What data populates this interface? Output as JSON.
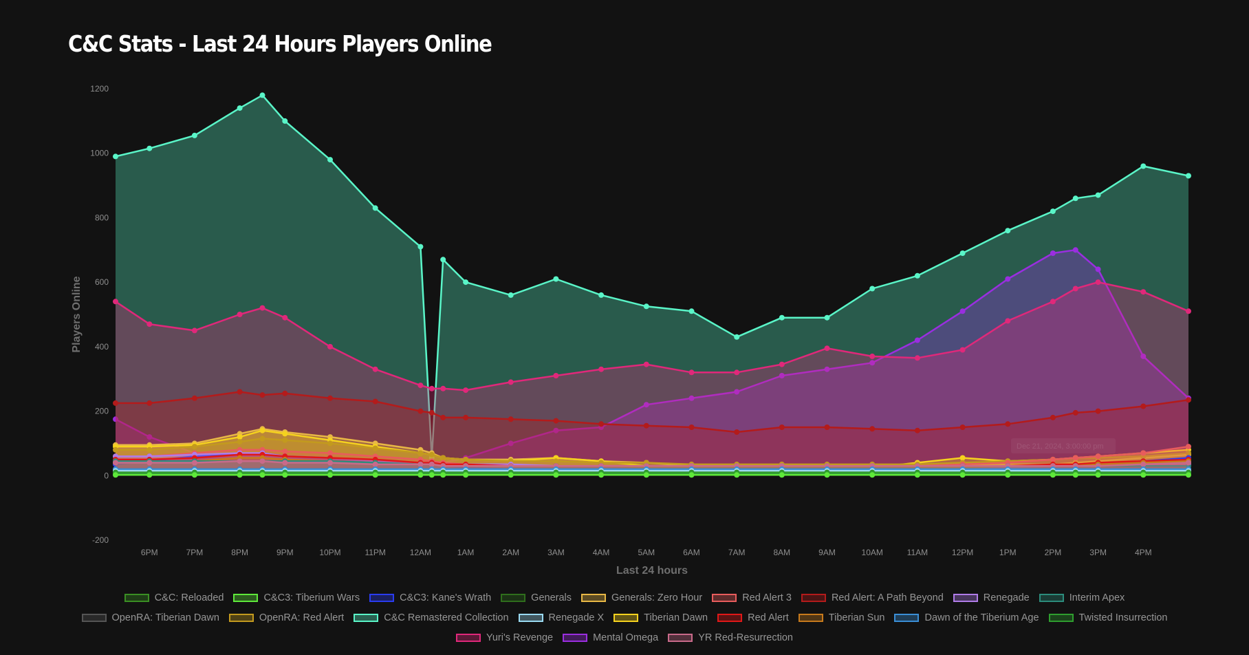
{
  "page": {
    "title": "C&C Stats - Last 24 Hours Players Online"
  },
  "colors": {
    "background": "#121212",
    "tick_text": "#8e8e8e",
    "axis_title_text": "#6f6f6f",
    "legend_text": "#969696"
  },
  "chart_data": {
    "type": "area",
    "title": "C&C Stats - Last 24 Hours Players Online",
    "xlabel": "Last 24 hours",
    "ylabel": "Players Online",
    "ylim": [
      -200,
      1200
    ],
    "y_ticks": [
      -200,
      0,
      200,
      400,
      600,
      800,
      1000,
      1200
    ],
    "x_range": [
      "17:15",
      "17:00"
    ],
    "x_tick_labels": [
      "6PM",
      "7PM",
      "8PM",
      "9PM",
      "10PM",
      "11PM",
      "12AM",
      "1AM",
      "2AM",
      "3AM",
      "4AM",
      "5AM",
      "6AM",
      "7AM",
      "8AM",
      "9AM",
      "10AM",
      "11AM",
      "12PM",
      "1PM",
      "2PM",
      "3PM",
      "4PM"
    ],
    "tooltip_text": "Dec 21, 2024, 3:00:00 pm",
    "grid": false,
    "legend_position": "bottom",
    "x": [
      "17:15",
      "18:00",
      "19:00",
      "20:00",
      "20:30",
      "21:00",
      "22:00",
      "23:00",
      "00:00",
      "00:15",
      "00:30",
      "01:00",
      "02:00",
      "03:00",
      "04:00",
      "05:00",
      "06:00",
      "07:00",
      "08:00",
      "09:00",
      "10:00",
      "11:00",
      "12:00",
      "13:00",
      "14:00",
      "14:30",
      "15:00",
      "16:00",
      "17:00"
    ],
    "series": [
      {
        "name": "C&C: Reloaded",
        "color": "#3a8f23",
        "values": [
          10,
          10,
          10,
          10,
          10,
          10,
          10,
          10,
          10,
          10,
          10,
          10,
          10,
          10,
          10,
          10,
          10,
          10,
          10,
          10,
          10,
          10,
          10,
          10,
          10,
          10,
          10,
          10,
          10
        ]
      },
      {
        "name": "C&C3: Tiberium Wars",
        "color": "#5ee83a",
        "values": [
          2,
          2,
          2,
          2,
          2,
          2,
          2,
          2,
          2,
          2,
          2,
          2,
          2,
          2,
          2,
          2,
          2,
          2,
          2,
          2,
          2,
          2,
          2,
          2,
          2,
          2,
          2,
          2,
          2
        ]
      },
      {
        "name": "C&C3: Kane's Wrath",
        "color": "#2a3cf0",
        "values": [
          35,
          45,
          60,
          65,
          70,
          60,
          55,
          45,
          35,
          35,
          30,
          25,
          20,
          20,
          20,
          15,
          15,
          15,
          15,
          15,
          15,
          15,
          20,
          25,
          30,
          30,
          35,
          45,
          55
        ]
      },
      {
        "name": "Generals",
        "color": "#2f6e1c",
        "values": [
          15,
          15,
          20,
          20,
          20,
          20,
          20,
          15,
          15,
          15,
          15,
          15,
          15,
          15,
          15,
          15,
          15,
          15,
          15,
          15,
          15,
          15,
          15,
          15,
          15,
          15,
          15,
          15,
          20
        ]
      },
      {
        "name": "Generals: Zero Hour",
        "color": "#e8b845",
        "values": [
          95,
          95,
          100,
          130,
          145,
          135,
          120,
          100,
          80,
          70,
          55,
          50,
          50,
          55,
          45,
          40,
          30,
          30,
          30,
          30,
          25,
          25,
          30,
          35,
          35,
          40,
          45,
          55,
          65
        ]
      },
      {
        "name": "Red Alert 3",
        "color": "#e85c5c",
        "values": [
          60,
          60,
          70,
          80,
          80,
          75,
          70,
          60,
          50,
          45,
          40,
          35,
          30,
          30,
          30,
          25,
          25,
          25,
          25,
          25,
          25,
          30,
          35,
          40,
          50,
          55,
          60,
          70,
          90
        ]
      },
      {
        "name": "Red Alert: A Path Beyond",
        "color": "#b31b1b",
        "values": [
          225,
          225,
          240,
          260,
          250,
          255,
          240,
          230,
          200,
          195,
          180,
          180,
          175,
          170,
          160,
          155,
          150,
          135,
          150,
          150,
          145,
          140,
          150,
          160,
          180,
          195,
          200,
          215,
          235
        ]
      },
      {
        "name": "Renegade",
        "color": "#b07ce8",
        "values": [
          60,
          60,
          65,
          70,
          70,
          60,
          55,
          45,
          40,
          40,
          35,
          35,
          35,
          30,
          30,
          25,
          25,
          25,
          25,
          25,
          25,
          25,
          25,
          25,
          30,
          30,
          30,
          30,
          35
        ]
      },
      {
        "name": "Interim Apex",
        "color": "#2c8c7c",
        "values": [
          45,
          45,
          45,
          45,
          45,
          45,
          45,
          40,
          35,
          35,
          30,
          30,
          30,
          30,
          30,
          30,
          30,
          30,
          30,
          30,
          30,
          30,
          30,
          30,
          30,
          30,
          30,
          30,
          30
        ]
      },
      {
        "name": "OpenRA: Tiberian Dawn",
        "color": "#555555",
        "values": [
          20,
          20,
          20,
          20,
          20,
          20,
          20,
          20,
          20,
          20,
          20,
          20,
          20,
          20,
          20,
          20,
          20,
          20,
          20,
          20,
          20,
          20,
          20,
          20,
          20,
          20,
          20,
          20,
          20
        ]
      },
      {
        "name": "OpenRA: Red Alert",
        "color": "#c39a1e",
        "values": [
          80,
          80,
          90,
          105,
          115,
          110,
          100,
          85,
          70,
          65,
          55,
          50,
          45,
          45,
          40,
          40,
          35,
          35,
          35,
          35,
          35,
          35,
          40,
          45,
          50,
          55,
          55,
          60,
          70
        ]
      },
      {
        "name": "C&C Remastered Collection",
        "color": "#5af5c8",
        "values": [
          990,
          1015,
          1055,
          1140,
          1180,
          1100,
          980,
          830,
          710,
          55,
          670,
          600,
          560,
          610,
          560,
          525,
          510,
          430,
          490,
          490,
          580,
          620,
          690,
          760,
          820,
          860,
          870,
          960,
          930
        ]
      },
      {
        "name": "Renegade X",
        "color": "#9adaf2",
        "values": [
          15,
          15,
          15,
          15,
          15,
          15,
          15,
          15,
          15,
          15,
          15,
          15,
          15,
          15,
          15,
          15,
          15,
          15,
          15,
          15,
          15,
          15,
          15,
          15,
          15,
          15,
          15,
          15,
          15
        ]
      },
      {
        "name": "Tiberian Dawn",
        "color": "#f5d21e",
        "values": [
          90,
          90,
          95,
          120,
          140,
          130,
          110,
          90,
          70,
          65,
          55,
          50,
          45,
          55,
          45,
          30,
          25,
          25,
          25,
          20,
          25,
          40,
          55,
          45,
          50,
          55,
          60,
          70,
          80
        ]
      },
      {
        "name": "Red Alert",
        "color": "#e01818",
        "values": [
          50,
          50,
          55,
          65,
          65,
          60,
          55,
          50,
          40,
          40,
          35,
          35,
          30,
          30,
          30,
          25,
          25,
          25,
          25,
          25,
          25,
          25,
          30,
          30,
          35,
          35,
          40,
          45,
          50
        ]
      },
      {
        "name": "Tiberian Sun",
        "color": "#c77a1c",
        "values": [
          40,
          40,
          45,
          55,
          55,
          50,
          45,
          40,
          35,
          35,
          30,
          30,
          30,
          30,
          30,
          25,
          25,
          25,
          25,
          25,
          25,
          25,
          25,
          30,
          30,
          30,
          35,
          40,
          45
        ]
      },
      {
        "name": "Dawn of the Tiberium Age",
        "color": "#3a8ed6",
        "values": [
          20,
          20,
          20,
          20,
          20,
          20,
          20,
          20,
          20,
          20,
          20,
          20,
          20,
          20,
          20,
          20,
          20,
          20,
          20,
          20,
          20,
          20,
          20,
          20,
          20,
          20,
          20,
          20,
          20
        ]
      },
      {
        "name": "Twisted Insurrection",
        "color": "#2f9e2f",
        "values": [
          8,
          8,
          8,
          8,
          8,
          8,
          8,
          8,
          8,
          8,
          8,
          8,
          8,
          8,
          8,
          8,
          8,
          8,
          8,
          8,
          8,
          8,
          8,
          8,
          8,
          8,
          8,
          8,
          8
        ]
      },
      {
        "name": "Yuri's Revenge",
        "color": "#e0287a",
        "values": [
          540,
          470,
          450,
          500,
          520,
          490,
          400,
          330,
          280,
          270,
          270,
          265,
          290,
          310,
          330,
          345,
          320,
          320,
          345,
          395,
          370,
          365,
          390,
          480,
          540,
          580,
          600,
          570,
          510
        ]
      },
      {
        "name": "Mental Omega",
        "color": "#9a2ee0",
        "values": [
          175,
          120,
          70,
          60,
          60,
          55,
          50,
          45,
          40,
          40,
          40,
          55,
          100,
          140,
          150,
          220,
          240,
          260,
          310,
          330,
          350,
          420,
          510,
          610,
          690,
          700,
          640,
          370,
          240
        ]
      },
      {
        "name": "YR Red-Resurrection",
        "color": "#c96a8a",
        "values": [
          40,
          40,
          40,
          45,
          45,
          40,
          40,
          35,
          35,
          35,
          30,
          30,
          30,
          30,
          30,
          30,
          30,
          30,
          30,
          30,
          30,
          30,
          30,
          30,
          30,
          30,
          30,
          35,
          40
        ]
      }
    ]
  }
}
